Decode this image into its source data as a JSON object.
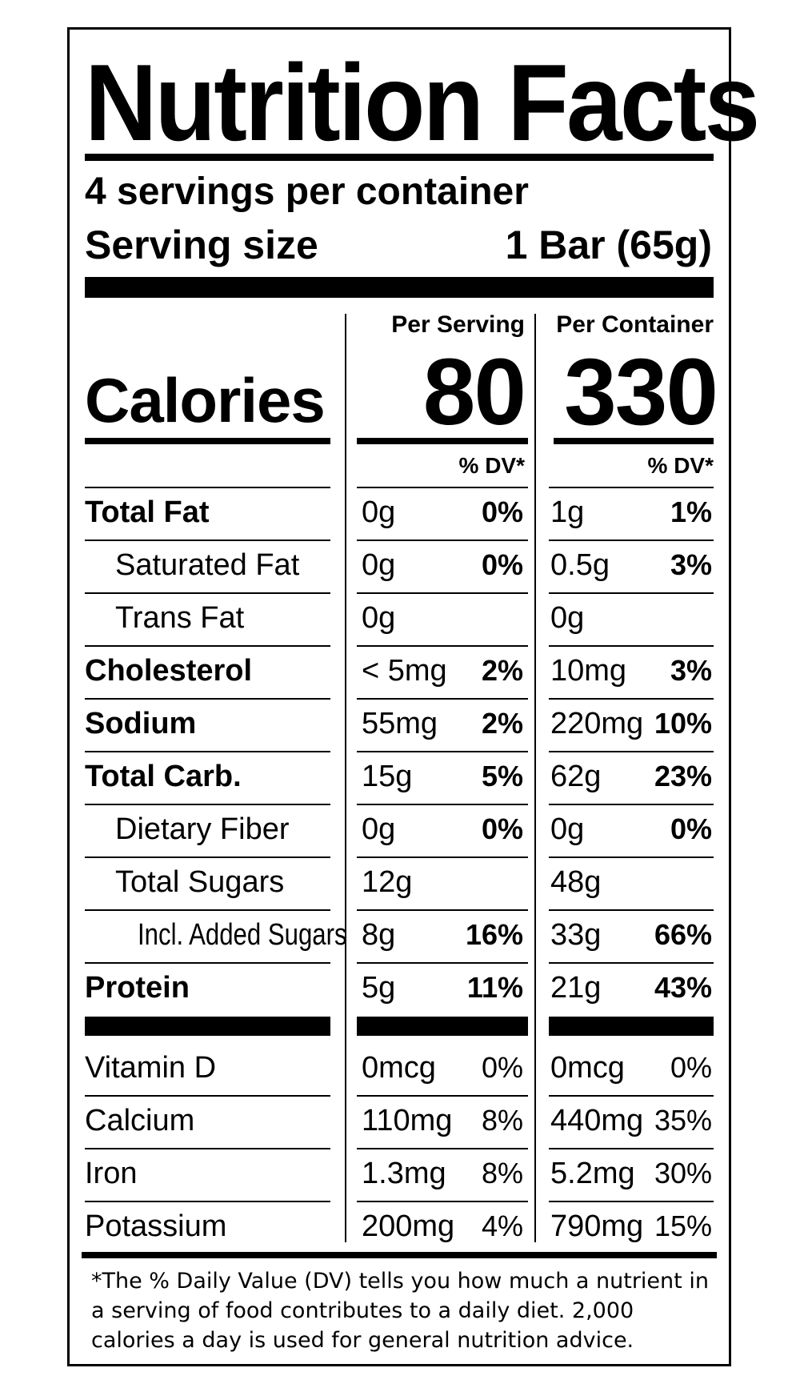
{
  "label": {
    "title": "Nutrition Facts",
    "servings_per_container": "4 servings per container",
    "serving_size_label": "Serving size",
    "serving_size_value": "1 Bar (65g)",
    "per_serving_head": "Per Serving",
    "per_container_head": "Per Container",
    "calories_label": "Calories",
    "calories_per_serving": "80",
    "calories_per_container": "330",
    "dv_head_serving": "% DV*",
    "dv_head_container": "% DV*",
    "nutrients": [
      {
        "name": "Total Fat",
        "serving_amt": "0g",
        "serving_dv": "0%",
        "container_amt": "1g",
        "container_dv": "1%"
      },
      {
        "name": "Saturated Fat",
        "serving_amt": "0g",
        "serving_dv": "0%",
        "container_amt": "0.5g",
        "container_dv": "3%"
      },
      {
        "name": "Trans Fat",
        "serving_amt": "0g",
        "serving_dv": "",
        "container_amt": "0g",
        "container_dv": ""
      },
      {
        "name": "Cholesterol",
        "serving_amt": "< 5mg",
        "serving_dv": "2%",
        "container_amt": "10mg",
        "container_dv": "3%"
      },
      {
        "name": "Sodium",
        "serving_amt": "55mg",
        "serving_dv": "2%",
        "container_amt": "220mg",
        "container_dv": "10%"
      },
      {
        "name": "Total Carb.",
        "serving_amt": "15g",
        "serving_dv": "5%",
        "container_amt": "62g",
        "container_dv": "23%"
      },
      {
        "name": "Dietary Fiber",
        "serving_amt": "0g",
        "serving_dv": "0%",
        "container_amt": "0g",
        "container_dv": "0%"
      },
      {
        "name": "Total Sugars",
        "serving_amt": "12g",
        "serving_dv": "",
        "container_amt": "48g",
        "container_dv": ""
      },
      {
        "name": "Incl. Added Sugars",
        "serving_amt": "8g",
        "serving_dv": "16%",
        "container_amt": "33g",
        "container_dv": "66%"
      },
      {
        "name": "Protein",
        "serving_amt": "5g",
        "serving_dv": "11%",
        "container_amt": "21g",
        "container_dv": "43%"
      }
    ],
    "vitamins": [
      {
        "name": "Vitamin D",
        "serving_amt": "0mcg",
        "serving_dv": "0%",
        "container_amt": "0mcg",
        "container_dv": "0%"
      },
      {
        "name": "Calcium",
        "serving_amt": "110mg",
        "serving_dv": "8%",
        "container_amt": "440mg",
        "container_dv": "35%"
      },
      {
        "name": "Iron",
        "serving_amt": "1.3mg",
        "serving_dv": "8%",
        "container_amt": "5.2mg",
        "container_dv": "30%"
      },
      {
        "name": "Potassium",
        "serving_amt": "200mg",
        "serving_dv": "4%",
        "container_amt": "790mg",
        "container_dv": "15%"
      }
    ],
    "footnote": "*The % Daily Value (DV) tells you how much a nutrient in a serving of food contributes to a daily diet. 2,000 calories a day is used for general nutrition advice."
  }
}
